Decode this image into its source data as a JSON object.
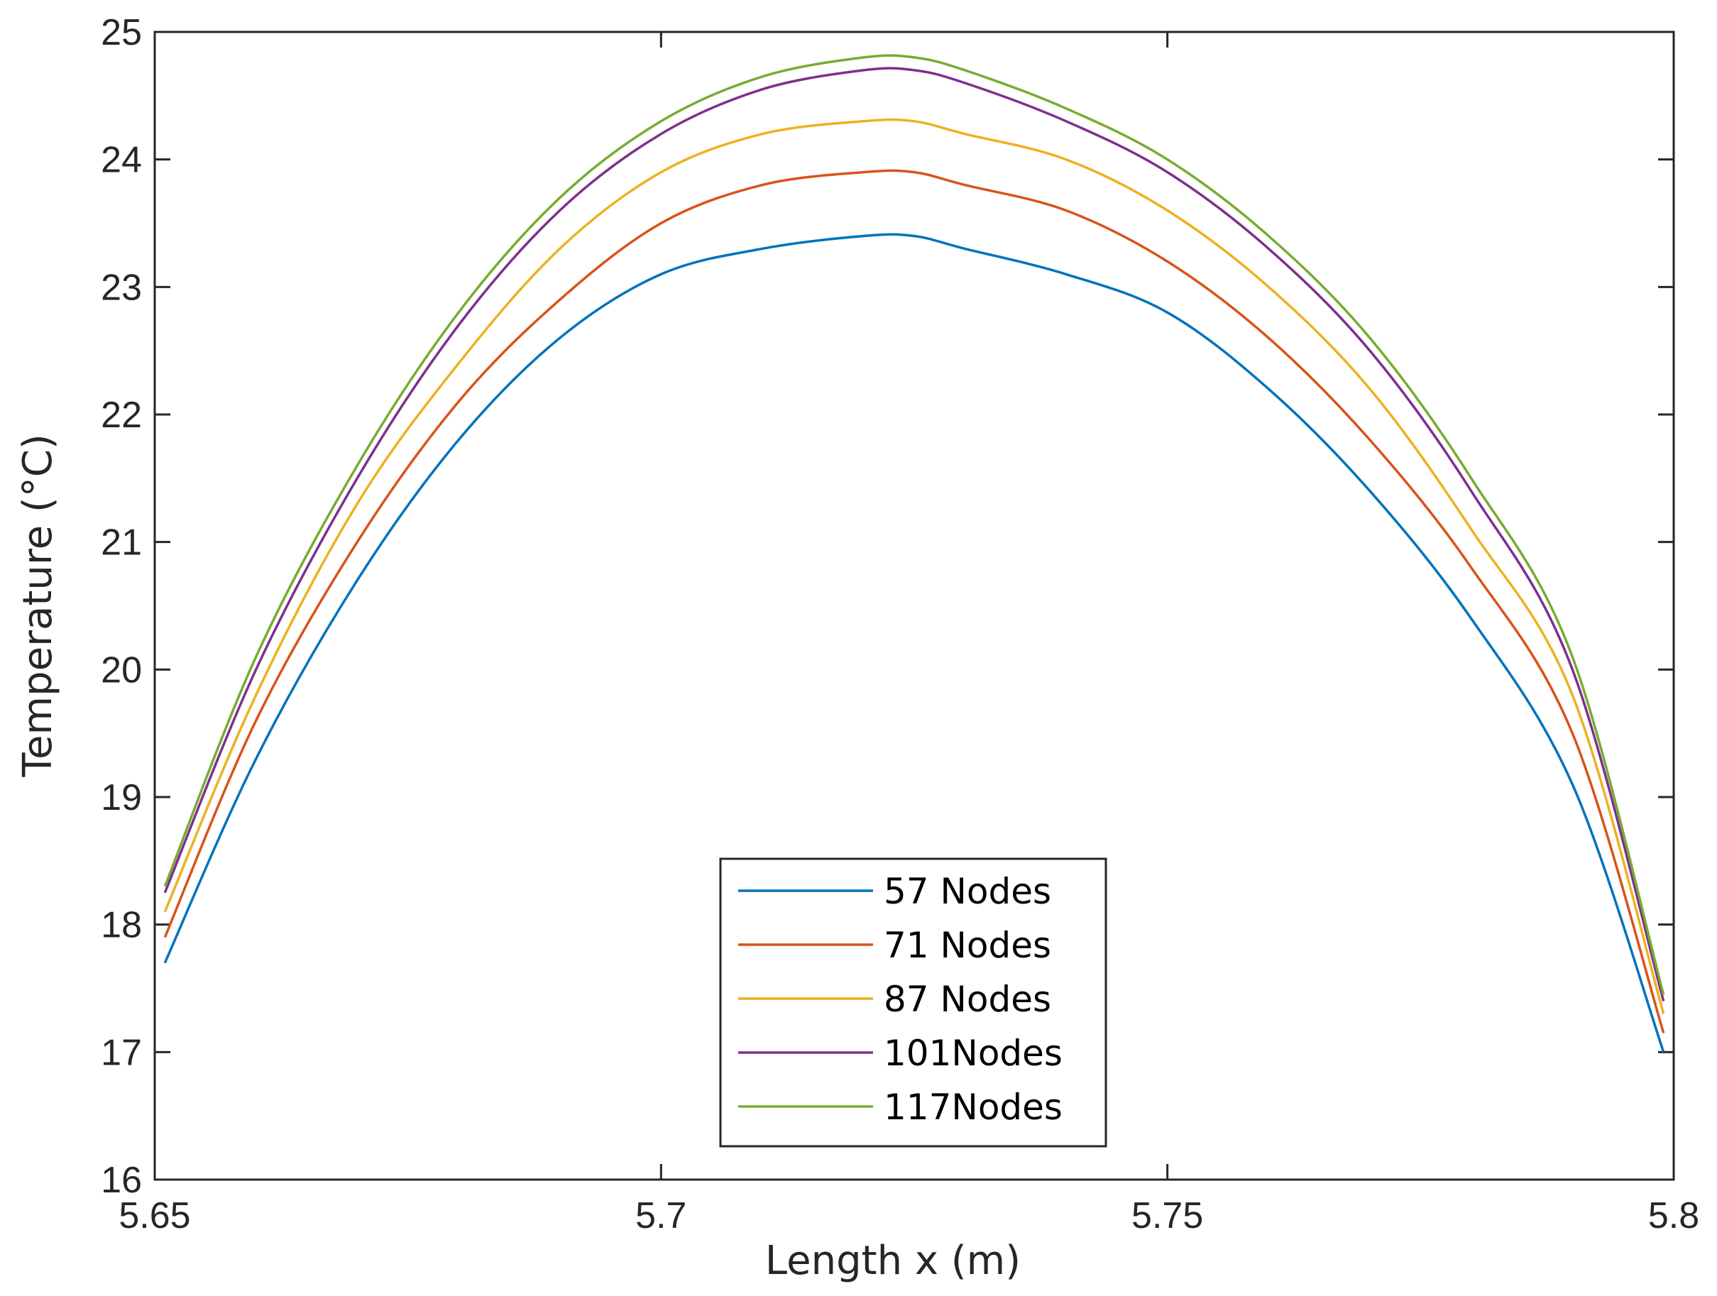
{
  "chart_data": {
    "type": "line",
    "title": "",
    "xlabel": "Length x (m)",
    "ylabel": "Temperature (°C)",
    "xlim": [
      5.65,
      5.8
    ],
    "ylim": [
      16,
      25
    ],
    "xticks": [
      "5.65",
      "5.7",
      "5.75",
      "5.8"
    ],
    "yticks": [
      "16",
      "17",
      "18",
      "19",
      "20",
      "21",
      "22",
      "23",
      "24",
      "25"
    ],
    "grid": false,
    "legend_position": "bottom-center",
    "x": [
      5.651,
      5.66,
      5.67,
      5.68,
      5.69,
      5.7,
      5.71,
      5.72,
      5.725,
      5.73,
      5.74,
      5.75,
      5.76,
      5.77,
      5.78,
      5.79,
      5.799
    ],
    "series": [
      {
        "name": "57 Nodes",
        "color": "#0072BD",
        "values": [
          17.7,
          19.3,
          20.7,
          21.8,
          22.6,
          23.1,
          23.3,
          23.4,
          23.4,
          23.3,
          23.1,
          22.8,
          22.2,
          21.4,
          20.4,
          19.1,
          17.0
        ]
      },
      {
        "name": "71 Nodes",
        "color": "#D95319",
        "values": [
          17.9,
          19.6,
          21.0,
          22.1,
          22.9,
          23.5,
          23.8,
          23.9,
          23.9,
          23.8,
          23.6,
          23.2,
          22.6,
          21.8,
          20.8,
          19.5,
          17.15
        ]
      },
      {
        "name": "87 Nodes",
        "color": "#EDB120",
        "values": [
          18.1,
          19.8,
          21.3,
          22.4,
          23.3,
          23.9,
          24.2,
          24.3,
          24.3,
          24.2,
          24.0,
          23.6,
          23.0,
          22.2,
          21.1,
          19.8,
          17.3
        ]
      },
      {
        "name": "101Nodes",
        "color": "#7E2F8E",
        "values": [
          18.25,
          20.0,
          21.5,
          22.7,
          23.6,
          24.2,
          24.55,
          24.7,
          24.7,
          24.6,
          24.3,
          23.9,
          23.3,
          22.5,
          21.4,
          20.0,
          17.4
        ]
      },
      {
        "name": "117Nodes",
        "color": "#77AC30",
        "values": [
          18.3,
          20.1,
          21.6,
          22.8,
          23.7,
          24.3,
          24.65,
          24.8,
          24.8,
          24.7,
          24.4,
          24.0,
          23.4,
          22.6,
          21.5,
          20.1,
          17.45
        ]
      }
    ]
  }
}
